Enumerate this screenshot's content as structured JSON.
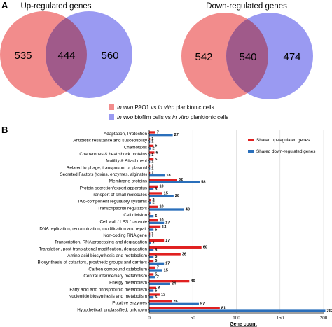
{
  "panel_a": {
    "letter": "A",
    "venns": [
      {
        "title": "Up-regulated genes",
        "left_only": "535",
        "overlap": "444",
        "right_only": "560"
      },
      {
        "title": "Down-regulated genes",
        "left_only": "542",
        "overlap": "540",
        "right_only": "474"
      }
    ],
    "legend": [
      {
        "italic_a": "In vivo",
        "mid": " PAO1 vs ",
        "italic_b": "in vitro",
        "tail": " planktonic cells",
        "color": "#f08080"
      },
      {
        "italic_a": "In vivo",
        "mid": " biofilm cells vs ",
        "italic_b": "in vitro",
        "tail": " planktonic cells",
        "color": "#8b8bf0"
      }
    ]
  },
  "panel_b": {
    "letter": "B"
  },
  "colors": {
    "venn_left": "#f28c8c",
    "venn_right": "#9a9af2",
    "venn_overlap": "#a05a8a",
    "up_bar": "#e02020",
    "down_bar": "#2a6fbb"
  },
  "chart_data": {
    "type": "bar",
    "orientation": "horizontal",
    "xlabel": "Gene count",
    "xlim": [
      0,
      200
    ],
    "xticks": [
      0,
      50,
      100,
      150,
      200
    ],
    "grid": true,
    "legend_placement": "top-right",
    "categories": [
      "Adaptation, Protection",
      "Antibiotic resistance and susceptibility",
      "Chemotaxis",
      "Chaperones & heat shock proteins",
      "Motility & Attachment",
      "Related to phage, transposon, or plasmid",
      "Secreted Factors (toxins, enzymes, alginate)",
      "Membrane proteins",
      "Protein secretion/export apparatus",
      "Transport of small molecules",
      "Two-component regulatory systems",
      "Transcriptional regulators",
      "Cell division",
      "Cell wall / LPS / capsule",
      "DNA replication, recombination, modification and repair",
      "Non-coding RNA gene",
      "Transcription, RNA processing and degradation",
      "Translation, post-translational modification, degradation",
      "Amino acid biosynthesis and metabolism",
      "Biosynthesis of cofactors, prosthetic groups and carriers",
      "Carbon compound catabolism",
      "Central intermediary metabolism",
      "Energy metabolism",
      "Fatty acid and phospholipid metabolism",
      "Nucleotide biosynthesis and metabolism",
      "Putative enzymes",
      "Hypothetical, unclassified, unknown"
    ],
    "series": [
      {
        "name": "Shared up-regulated genes",
        "color": "#e02020",
        "values": [
          7,
          1,
          5,
          6,
          5,
          1,
          1,
          32,
          10,
          15,
          2,
          10,
          1,
          10,
          13,
          1,
          17,
          60,
          36,
          5,
          7,
          5,
          46,
          8,
          12,
          26,
          81
        ],
        "labels": [
          "7",
          "1",
          "5",
          "6",
          "5",
          "1",
          "1",
          "32",
          "10",
          "15",
          "2",
          "10",
          "",
          "10",
          "13",
          "1",
          "17",
          "60",
          "36",
          "5",
          "7",
          "5",
          "46",
          "8",
          "12",
          "26",
          "81"
        ]
      },
      {
        "name": "Shared down-regulated genes",
        "color": "#2a6fbb",
        "values": [
          27,
          1,
          2,
          1,
          1,
          1,
          18,
          58,
          5,
          28,
          2,
          40,
          5,
          17,
          5,
          1,
          2,
          5,
          5,
          17,
          15,
          7,
          24,
          5,
          5,
          57,
          202
        ],
        "labels": [
          "27",
          "1",
          "2",
          "1",
          "1",
          "1",
          "18",
          "58",
          "5",
          "28",
          "2",
          "40",
          "5",
          "17",
          "5",
          "1",
          "2",
          "5",
          "5",
          "17",
          "15",
          "7",
          "24",
          "5",
          "5",
          "57",
          "202"
        ]
      }
    ]
  }
}
